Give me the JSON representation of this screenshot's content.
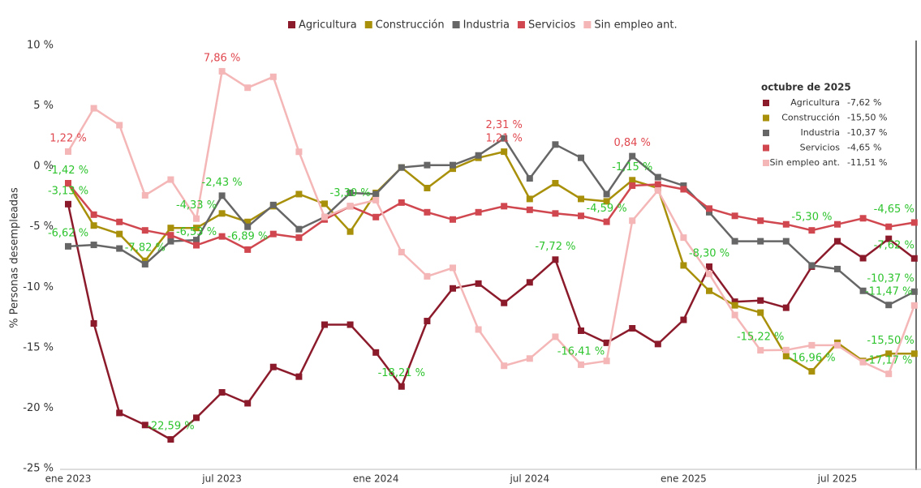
{
  "chart_data": {
    "type": "line",
    "y_label": "% Personas desempleadas",
    "categories": [
      "ene 2023",
      null,
      null,
      null,
      null,
      null,
      "jul 2023",
      null,
      null,
      null,
      null,
      null,
      "ene 2024",
      null,
      null,
      null,
      null,
      null,
      "jul 2024",
      null,
      null,
      null,
      null,
      null,
      "ene 2025",
      null,
      null,
      null,
      null,
      null,
      "jul 2025",
      null,
      null,
      null
    ],
    "ylim": [
      -25,
      10
    ],
    "yticks": [
      {
        "value": 10,
        "label": "10 %"
      },
      {
        "value": 5,
        "label": "5 %"
      },
      {
        "value": 0,
        "label": "0 %"
      },
      {
        "value": -5,
        "label": "-5 %"
      },
      {
        "value": -10,
        "label": "-10 %"
      },
      {
        "value": -15,
        "label": "-15 %"
      },
      {
        "value": -20,
        "label": "-20 %"
      },
      {
        "value": -25,
        "label": "-25 %"
      }
    ],
    "grid": false,
    "legend": "top",
    "series": [
      {
        "name": "Agricultura",
        "color": "#8b1a2b",
        "values": [
          -3.13,
          -13.0,
          -20.4,
          -21.4,
          -22.59,
          -20.8,
          -18.7,
          -19.6,
          -16.6,
          -17.4,
          -13.1,
          -13.1,
          -15.4,
          -18.21,
          -12.8,
          -10.1,
          -9.7,
          -11.3,
          -9.6,
          -7.72,
          -13.6,
          -14.6,
          -13.4,
          -14.7,
          -12.7,
          -8.3,
          -11.2,
          -11.1,
          -11.7,
          -8.3,
          -6.2,
          -7.6,
          -6.0,
          -7.62
        ],
        "value_labels": [
          "-3,13 %",
          null,
          null,
          null,
          "-22,59 %",
          null,
          null,
          null,
          null,
          null,
          null,
          null,
          null,
          "-18,21 %",
          null,
          null,
          null,
          null,
          null,
          "-7,72 %",
          null,
          null,
          null,
          null,
          null,
          "-8,30 %",
          null,
          null,
          null,
          null,
          null,
          null,
          null,
          "-7,62 %"
        ]
      },
      {
        "name": "Construcción",
        "color": "#a8900a",
        "values": [
          -1.42,
          -4.9,
          -5.6,
          -7.82,
          -5.1,
          -5.1,
          -3.9,
          -4.6,
          -3.3,
          -2.3,
          -3.1,
          -5.4,
          -2.2,
          -0.1,
          -1.8,
          -0.2,
          0.7,
          1.21,
          -2.7,
          -1.4,
          -2.7,
          -2.9,
          -1.15,
          -1.8,
          -8.2,
          -10.3,
          -11.5,
          -12.1,
          -15.7,
          -16.96,
          -14.6,
          -16.1,
          -15.5,
          -15.5
        ],
        "value_labels": [
          "-1,42 %",
          null,
          null,
          "-7,82 %",
          null,
          null,
          null,
          null,
          null,
          null,
          null,
          null,
          null,
          null,
          null,
          null,
          null,
          "1,21 %",
          null,
          null,
          null,
          null,
          "-1,15 %",
          null,
          null,
          null,
          null,
          null,
          null,
          "-16,96 %",
          null,
          null,
          null,
          "-15,50 %"
        ]
      },
      {
        "name": "Industria",
        "color": "#666666",
        "values": [
          -6.62,
          -6.5,
          -6.8,
          -8.1,
          -6.2,
          -6.1,
          -2.43,
          -5.0,
          -3.2,
          -5.2,
          -4.2,
          -2.2,
          -2.3,
          -0.1,
          0.1,
          0.1,
          0.9,
          2.31,
          -1.0,
          1.8,
          0.7,
          -2.3,
          0.84,
          -0.9,
          -1.6,
          -3.8,
          -6.2,
          -6.2,
          -6.2,
          -8.2,
          -8.5,
          -10.3,
          -11.47,
          -10.37
        ],
        "value_labels": [
          "-6,62 %",
          null,
          null,
          null,
          null,
          null,
          "-2,43 %",
          null,
          null,
          null,
          null,
          null,
          null,
          null,
          null,
          null,
          null,
          "2,31 %",
          null,
          null,
          null,
          null,
          "0,84 %",
          null,
          null,
          null,
          null,
          null,
          null,
          null,
          null,
          null,
          "-11,47 %",
          "-10,37 %"
        ]
      },
      {
        "name": "Servicios",
        "color": "#d0474f",
        "values": [
          -1.4,
          -4.0,
          -4.6,
          -5.3,
          -5.7,
          -6.53,
          -5.8,
          -6.89,
          -5.6,
          -5.9,
          -4.4,
          -3.3,
          -4.2,
          -3.0,
          -3.8,
          -4.4,
          -3.8,
          -3.3,
          -3.6,
          -3.9,
          -4.1,
          -4.59,
          -1.6,
          -1.5,
          -1.9,
          -3.5,
          -4.1,
          -4.5,
          -4.8,
          -5.3,
          -4.8,
          -4.3,
          -5.0,
          -4.65
        ],
        "value_labels": [
          null,
          null,
          null,
          null,
          null,
          "-6,53 %",
          null,
          "-6,89 %",
          null,
          null,
          null,
          null,
          null,
          null,
          null,
          null,
          null,
          null,
          null,
          null,
          null,
          "-4,59 %",
          null,
          null,
          null,
          null,
          null,
          null,
          null,
          "-5,30 %",
          null,
          null,
          null,
          "-4,65 %"
        ]
      },
      {
        "name": "Sin empleo ant.",
        "color": "#f4b6b6",
        "values": [
          1.22,
          4.8,
          3.4,
          -2.4,
          -1.1,
          -4.33,
          7.86,
          6.5,
          7.4,
          1.2,
          -4.2,
          -3.3,
          -2.8,
          -7.1,
          -9.1,
          -8.4,
          -13.5,
          -16.5,
          -15.9,
          -14.1,
          -16.41,
          -16.1,
          -4.5,
          -2.0,
          -5.9,
          -8.9,
          -12.3,
          -15.22,
          -15.2,
          -14.8,
          -14.8,
          -16.2,
          -17.17,
          -11.51
        ],
        "value_labels": [
          "1,22 %",
          null,
          null,
          null,
          null,
          "-4,33 %",
          "7,86 %",
          null,
          null,
          null,
          null,
          "-3,30 %",
          null,
          null,
          null,
          null,
          null,
          null,
          null,
          null,
          "-16,41 %",
          null,
          null,
          null,
          null,
          null,
          null,
          "-15,22 %",
          null,
          null,
          null,
          null,
          "-17,17 %",
          null
        ]
      }
    ],
    "tooltip": {
      "title": "octubre de 2025",
      "values": [
        "-7,62 %",
        "-15,50 %",
        "-10,37 %",
        "-4,65 %",
        "-11,51 %"
      ]
    }
  }
}
